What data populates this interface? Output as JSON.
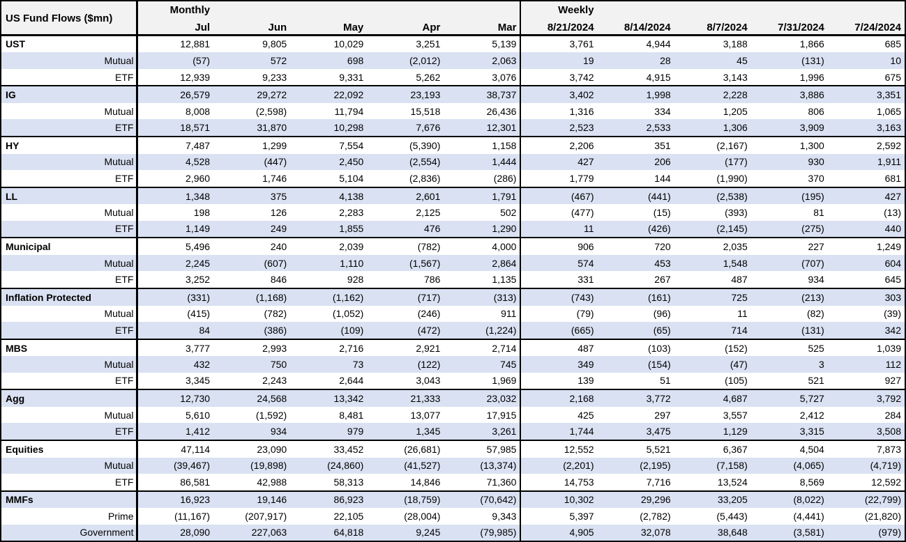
{
  "title": "US Fund Flows ($mn)",
  "colors": {
    "stripe_bg": "#d9e1f2",
    "header_bg": "#f2f2f2",
    "border": "#000000",
    "text": "#000000"
  },
  "chart_data": {
    "type": "table",
    "title": "US Fund Flows ($mn)",
    "layout_hints": {
      "striped_rows": true,
      "group_separators": "thick black line above each category row",
      "negative_format": "parentheses"
    },
    "column_groups": [
      {
        "label": "Monthly",
        "columns": [
          "Jul",
          "Jun",
          "May",
          "Apr",
          "Mar"
        ]
      },
      {
        "label": "Weekly",
        "columns": [
          "8/21/2024",
          "8/14/2024",
          "8/7/2024",
          "7/31/2024",
          "7/24/2024"
        ]
      }
    ],
    "rows": [
      {
        "label": "UST",
        "level": "group",
        "monthly": [
          "12,881",
          "9,805",
          "10,029",
          "3,251",
          "5,139"
        ],
        "weekly": [
          "3,761",
          "4,944",
          "3,188",
          "1,866",
          "685"
        ]
      },
      {
        "label": "Mutual",
        "level": "sub",
        "monthly": [
          "(57)",
          "572",
          "698",
          "(2,012)",
          "2,063"
        ],
        "weekly": [
          "19",
          "28",
          "45",
          "(131)",
          "10"
        ]
      },
      {
        "label": "ETF",
        "level": "sub",
        "monthly": [
          "12,939",
          "9,233",
          "9,331",
          "5,262",
          "3,076"
        ],
        "weekly": [
          "3,742",
          "4,915",
          "3,143",
          "1,996",
          "675"
        ]
      },
      {
        "label": "IG",
        "level": "group",
        "monthly": [
          "26,579",
          "29,272",
          "22,092",
          "23,193",
          "38,737"
        ],
        "weekly": [
          "3,402",
          "1,998",
          "2,228",
          "3,886",
          "3,351"
        ]
      },
      {
        "label": "Mutual",
        "level": "sub",
        "monthly": [
          "8,008",
          "(2,598)",
          "11,794",
          "15,518",
          "26,436"
        ],
        "weekly": [
          "1,316",
          "334",
          "1,205",
          "806",
          "1,065"
        ]
      },
      {
        "label": "ETF",
        "level": "sub",
        "monthly": [
          "18,571",
          "31,870",
          "10,298",
          "7,676",
          "12,301"
        ],
        "weekly": [
          "2,523",
          "2,533",
          "1,306",
          "3,909",
          "3,163"
        ]
      },
      {
        "label": "HY",
        "level": "group",
        "monthly": [
          "7,487",
          "1,299",
          "7,554",
          "(5,390)",
          "1,158"
        ],
        "weekly": [
          "2,206",
          "351",
          "(2,167)",
          "1,300",
          "2,592"
        ]
      },
      {
        "label": "Mutual",
        "level": "sub",
        "monthly": [
          "4,528",
          "(447)",
          "2,450",
          "(2,554)",
          "1,444"
        ],
        "weekly": [
          "427",
          "206",
          "(177)",
          "930",
          "1,911"
        ]
      },
      {
        "label": "ETF",
        "level": "sub",
        "monthly": [
          "2,960",
          "1,746",
          "5,104",
          "(2,836)",
          "(286)"
        ],
        "weekly": [
          "1,779",
          "144",
          "(1,990)",
          "370",
          "681"
        ]
      },
      {
        "label": "LL",
        "level": "group",
        "monthly": [
          "1,348",
          "375",
          "4,138",
          "2,601",
          "1,791"
        ],
        "weekly": [
          "(467)",
          "(441)",
          "(2,538)",
          "(195)",
          "427"
        ]
      },
      {
        "label": "Mutual",
        "level": "sub",
        "monthly": [
          "198",
          "126",
          "2,283",
          "2,125",
          "502"
        ],
        "weekly": [
          "(477)",
          "(15)",
          "(393)",
          "81",
          "(13)"
        ]
      },
      {
        "label": "ETF",
        "level": "sub",
        "monthly": [
          "1,149",
          "249",
          "1,855",
          "476",
          "1,290"
        ],
        "weekly": [
          "11",
          "(426)",
          "(2,145)",
          "(275)",
          "440"
        ]
      },
      {
        "label": "Municipal",
        "level": "group",
        "monthly": [
          "5,496",
          "240",
          "2,039",
          "(782)",
          "4,000"
        ],
        "weekly": [
          "906",
          "720",
          "2,035",
          "227",
          "1,249"
        ]
      },
      {
        "label": "Mutual",
        "level": "sub",
        "monthly": [
          "2,245",
          "(607)",
          "1,110",
          "(1,567)",
          "2,864"
        ],
        "weekly": [
          "574",
          "453",
          "1,548",
          "(707)",
          "604"
        ]
      },
      {
        "label": "ETF",
        "level": "sub",
        "monthly": [
          "3,252",
          "846",
          "928",
          "786",
          "1,135"
        ],
        "weekly": [
          "331",
          "267",
          "487",
          "934",
          "645"
        ]
      },
      {
        "label": "Inflation Protected",
        "level": "group",
        "monthly": [
          "(331)",
          "(1,168)",
          "(1,162)",
          "(717)",
          "(313)"
        ],
        "weekly": [
          "(743)",
          "(161)",
          "725",
          "(213)",
          "303"
        ]
      },
      {
        "label": "Mutual",
        "level": "sub",
        "monthly": [
          "(415)",
          "(782)",
          "(1,052)",
          "(246)",
          "911"
        ],
        "weekly": [
          "(79)",
          "(96)",
          "11",
          "(82)",
          "(39)"
        ]
      },
      {
        "label": "ETF",
        "level": "sub",
        "monthly": [
          "84",
          "(386)",
          "(109)",
          "(472)",
          "(1,224)"
        ],
        "weekly": [
          "(665)",
          "(65)",
          "714",
          "(131)",
          "342"
        ]
      },
      {
        "label": "MBS",
        "level": "group",
        "monthly": [
          "3,777",
          "2,993",
          "2,716",
          "2,921",
          "2,714"
        ],
        "weekly": [
          "487",
          "(103)",
          "(152)",
          "525",
          "1,039"
        ]
      },
      {
        "label": "Mutual",
        "level": "sub",
        "monthly": [
          "432",
          "750",
          "73",
          "(122)",
          "745"
        ],
        "weekly": [
          "349",
          "(154)",
          "(47)",
          "3",
          "112"
        ]
      },
      {
        "label": "ETF",
        "level": "sub",
        "monthly": [
          "3,345",
          "2,243",
          "2,644",
          "3,043",
          "1,969"
        ],
        "weekly": [
          "139",
          "51",
          "(105)",
          "521",
          "927"
        ]
      },
      {
        "label": "Agg",
        "level": "group",
        "monthly": [
          "12,730",
          "24,568",
          "13,342",
          "21,333",
          "23,032"
        ],
        "weekly": [
          "2,168",
          "3,772",
          "4,687",
          "5,727",
          "3,792"
        ]
      },
      {
        "label": "Mutual",
        "level": "sub",
        "monthly": [
          "5,610",
          "(1,592)",
          "8,481",
          "13,077",
          "17,915"
        ],
        "weekly": [
          "425",
          "297",
          "3,557",
          "2,412",
          "284"
        ]
      },
      {
        "label": "ETF",
        "level": "sub",
        "monthly": [
          "1,412",
          "934",
          "979",
          "1,345",
          "3,261"
        ],
        "weekly": [
          "1,744",
          "3,475",
          "1,129",
          "3,315",
          "3,508"
        ]
      },
      {
        "label": "Equities",
        "level": "group",
        "monthly": [
          "47,114",
          "23,090",
          "33,452",
          "(26,681)",
          "57,985"
        ],
        "weekly": [
          "12,552",
          "5,521",
          "6,367",
          "4,504",
          "7,873"
        ]
      },
      {
        "label": "Mutual",
        "level": "sub",
        "monthly": [
          "(39,467)",
          "(19,898)",
          "(24,860)",
          "(41,527)",
          "(13,374)"
        ],
        "weekly": [
          "(2,201)",
          "(2,195)",
          "(7,158)",
          "(4,065)",
          "(4,719)"
        ]
      },
      {
        "label": "ETF",
        "level": "sub",
        "monthly": [
          "86,581",
          "42,988",
          "58,313",
          "14,846",
          "71,360"
        ],
        "weekly": [
          "14,753",
          "7,716",
          "13,524",
          "8,569",
          "12,592"
        ]
      },
      {
        "label": "MMFs",
        "level": "group",
        "monthly": [
          "16,923",
          "19,146",
          "86,923",
          "(18,759)",
          "(70,642)"
        ],
        "weekly": [
          "10,302",
          "29,296",
          "33,205",
          "(8,022)",
          "(22,799)"
        ]
      },
      {
        "label": "Prime",
        "level": "sub",
        "monthly": [
          "(11,167)",
          "(207,917)",
          "22,105",
          "(28,004)",
          "9,343"
        ],
        "weekly": [
          "5,397",
          "(2,782)",
          "(5,443)",
          "(4,441)",
          "(21,820)"
        ]
      },
      {
        "label": "Government",
        "level": "sub",
        "monthly": [
          "28,090",
          "227,063",
          "64,818",
          "9,245",
          "(79,985)"
        ],
        "weekly": [
          "4,905",
          "32,078",
          "38,648",
          "(3,581)",
          "(979)"
        ]
      }
    ]
  }
}
